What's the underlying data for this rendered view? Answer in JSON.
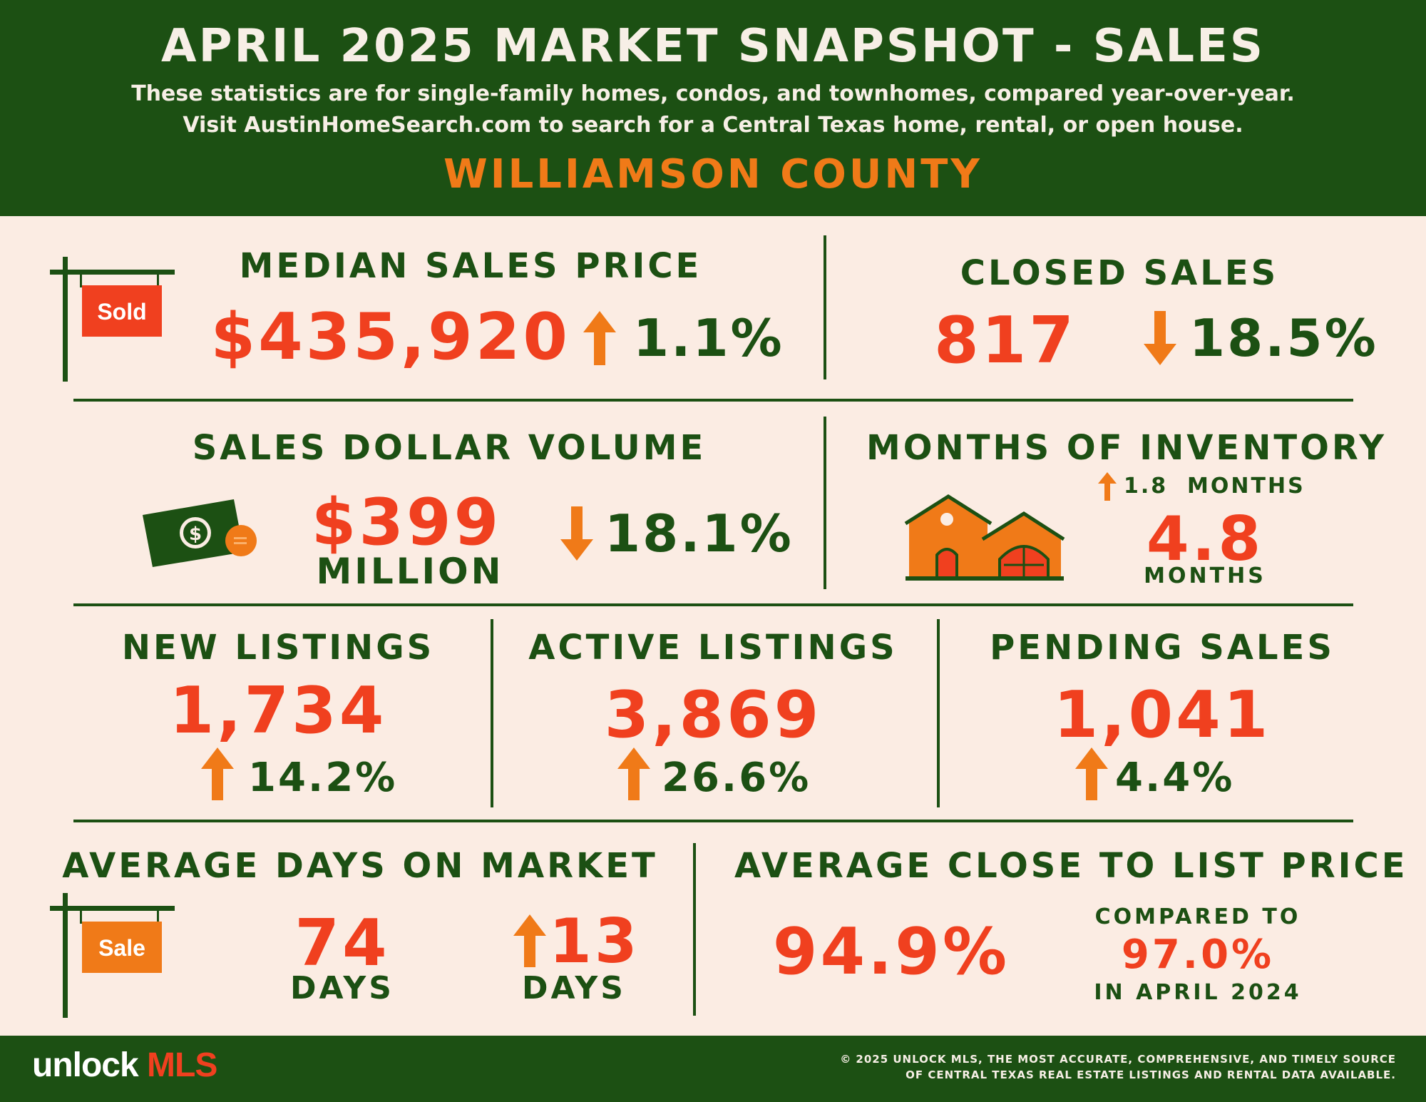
{
  "header": {
    "title": "APRIL 2025 MARKET SNAPSHOT - SALES",
    "subtitle_line1": "These statistics are for single-family homes, condos, and townhomes, compared year-over-year.",
    "subtitle_line2": "Visit AustinHomeSearch.com to search for a Central Texas home, rental, or open house.",
    "county": "WILLIAMSON COUNTY"
  },
  "median_sales_price": {
    "label": "MEDIAN SALES PRICE",
    "value": "$435,920",
    "change": "1.1%",
    "direction": "up",
    "sign_text": "Sold"
  },
  "closed_sales": {
    "label": "CLOSED SALES",
    "value": "817",
    "change": "18.5%",
    "direction": "down"
  },
  "sales_dollar_volume": {
    "label": "SALES DOLLAR VOLUME",
    "value": "$399",
    "unit": "MILLION",
    "change": "18.1%",
    "direction": "down"
  },
  "months_of_inventory": {
    "label": "MONTHS OF INVENTORY",
    "change": "1.8  MONTHS",
    "direction": "up",
    "value": "4.8",
    "unit": "MONTHS"
  },
  "new_listings": {
    "label": "NEW LISTINGS",
    "value": "1,734",
    "change": "14.2%",
    "direction": "up"
  },
  "active_listings": {
    "label": "ACTIVE LISTINGS",
    "value": "3,869",
    "change": "26.6%",
    "direction": "up"
  },
  "pending_sales": {
    "label": "PENDING SALES",
    "value": "1,041",
    "change": "4.4%",
    "direction": "up"
  },
  "average_days_on_market": {
    "label": "AVERAGE DAYS ON MARKET",
    "value": "74",
    "unit": "DAYS",
    "change": "13",
    "change_unit": "DAYS",
    "direction": "up",
    "sign_text": "Sale"
  },
  "average_close_to_list": {
    "label": "AVERAGE CLOSE TO LIST PRICE",
    "value": "94.9%",
    "compared_label": "COMPARED TO",
    "compared_value": "97.0%",
    "compared_period": "IN APRIL 2024"
  },
  "footer": {
    "logo_word": "unlock",
    "logo_brand": "MLS",
    "copyright_line1": "© 2025 UNLOCK MLS, THE MOST ACCURATE, COMPREHENSIVE, AND TIMELY SOURCE",
    "copyright_line2": "OF CENTRAL TEXAS REAL ESTATE LISTINGS AND RENTAL DATA AVAILABLE."
  },
  "colors": {
    "green": "#1c5013",
    "red": "#f0401f",
    "orange": "#f07a18",
    "cream": "#fbece3"
  }
}
